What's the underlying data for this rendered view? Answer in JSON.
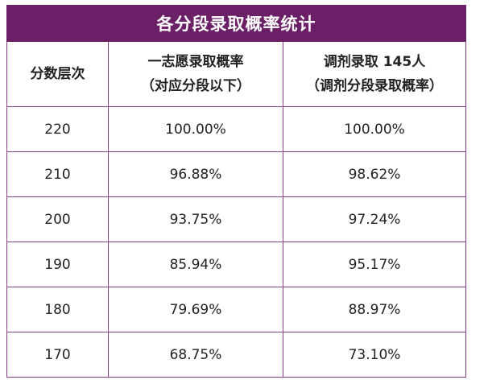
{
  "table": {
    "title": "各分段录取概率统计",
    "headers": {
      "col1": "分数层次",
      "col2_line1": "一志愿录取概率",
      "col2_line2": "（对应分段以下）",
      "col3_prefix": "调剂录取 ",
      "col3_count": "145",
      "col3_suffix": "人",
      "col3_line2": "（调剂分段录取概率）"
    },
    "rows": [
      {
        "score": "220",
        "first_choice": "100.00%",
        "adjust": "100.00%"
      },
      {
        "score": "210",
        "first_choice": "96.88%",
        "adjust": "98.62%"
      },
      {
        "score": "200",
        "first_choice": "93.75%",
        "adjust": "97.24%"
      },
      {
        "score": "190",
        "first_choice": "85.94%",
        "adjust": "95.17%"
      },
      {
        "score": "180",
        "first_choice": "79.69%",
        "adjust": "88.97%"
      },
      {
        "score": "170",
        "first_choice": "68.75%",
        "adjust": "73.10%"
      }
    ]
  }
}
